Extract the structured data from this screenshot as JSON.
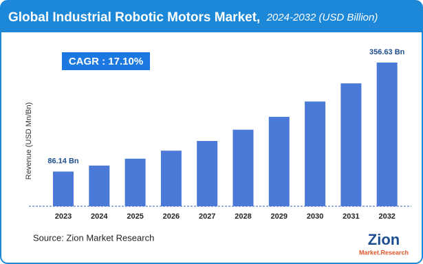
{
  "chart_data": {
    "type": "bar",
    "title": "Global Industrial Robotic Motors Market,",
    "subtitle": "2024-2032 (USD Billion)",
    "cagr": "CAGR : 17.10%",
    "y_label": "Revenue (USD Mn/Bn)",
    "source": "Source: Zion Market Research",
    "logo": {
      "name": "Zion",
      "tagline": "Market.Research"
    },
    "categories": [
      "2023",
      "2024",
      "2025",
      "2026",
      "2027",
      "2028",
      "2029",
      "2030",
      "2031",
      "2032"
    ],
    "values": [
      86.14,
      101,
      118,
      138,
      162,
      190,
      222,
      260,
      305,
      356.63
    ],
    "value_labels": [
      "86.14 Bn",
      null,
      null,
      null,
      null,
      null,
      null,
      null,
      null,
      "356.63 Bn"
    ],
    "color": "#4b79d8"
  }
}
